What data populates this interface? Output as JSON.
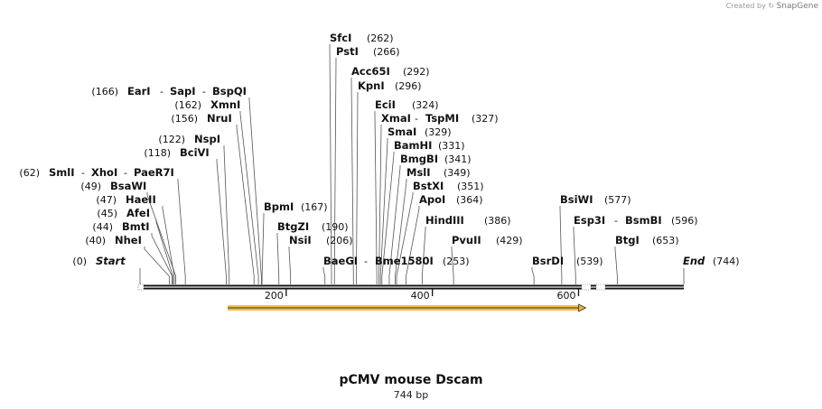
{
  "credit": {
    "prefix": "Created by",
    "brand": "SnapGene"
  },
  "plasmid": {
    "name": "pCMV mouse Dscam",
    "size_label": "744 bp",
    "length_bp": 744
  },
  "colors": {
    "feature": "#f0b030",
    "backbone": "#111111",
    "lines": "#555555"
  },
  "ticks": [
    200,
    400,
    600
  ],
  "feature": {
    "start_bp": 120,
    "end_bp": 610
  },
  "rows": [
    {
      "pos_bp": 262,
      "labels": [
        {
          "name": "SfcI",
          "pos": "(262)"
        }
      ]
    },
    {
      "pos_bp": 266,
      "labels": [
        {
          "name": "PstI",
          "pos": "(266)"
        }
      ]
    },
    {
      "pos_bp": 292,
      "labels": [
        {
          "name": "Acc65I",
          "pos": "(292)"
        }
      ]
    },
    {
      "pos_bp": 296,
      "labels": [
        {
          "name": "KpnI",
          "pos": "(296)"
        }
      ]
    },
    {
      "pos_bp": 166,
      "side": "left",
      "labels": [
        {
          "name": "EarI"
        },
        {
          "name": "SapI"
        },
        {
          "name": "BspQI"
        }
      ],
      "pos": "(166)"
    },
    {
      "pos_bp": 324,
      "labels": [
        {
          "name": "EciI",
          "pos": "(324)"
        }
      ]
    },
    {
      "pos_bp": 162,
      "side": "left",
      "labels": [
        {
          "name": "XmnI"
        }
      ],
      "pos": "(162)"
    },
    {
      "pos_bp": 327,
      "labels": [
        {
          "name": "XmaI"
        },
        {
          "name": "TspMI"
        }
      ],
      "pos": "(327)"
    },
    {
      "pos_bp": 156,
      "side": "left",
      "labels": [
        {
          "name": "NruI"
        }
      ],
      "pos": "(156)"
    },
    {
      "pos_bp": 329,
      "labels": [
        {
          "name": "SmaI",
          "pos": "(329)"
        }
      ]
    },
    {
      "pos_bp": 122,
      "side": "left",
      "labels": [
        {
          "name": "NspI"
        }
      ],
      "pos": "(122)"
    },
    {
      "pos_bp": 331,
      "labels": [
        {
          "name": "BamHI",
          "pos": "(331)"
        }
      ]
    },
    {
      "pos_bp": 118,
      "side": "left",
      "labels": [
        {
          "name": "BciVI"
        }
      ],
      "pos": "(118)"
    },
    {
      "pos_bp": 341,
      "labels": [
        {
          "name": "BmgBI",
          "pos": "(341)"
        }
      ]
    },
    {
      "pos_bp": 62,
      "side": "left",
      "labels": [
        {
          "name": "SmlI"
        },
        {
          "name": "XhoI"
        },
        {
          "name": "PaeR7I"
        }
      ],
      "pos": "(62)"
    },
    {
      "pos_bp": 349,
      "labels": [
        {
          "name": "MslI",
          "pos": "(349)"
        }
      ]
    },
    {
      "pos_bp": 49,
      "side": "left",
      "labels": [
        {
          "name": "BsaWI"
        }
      ],
      "pos": "(49)"
    },
    {
      "pos_bp": 351,
      "labels": [
        {
          "name": "BstXI",
          "pos": "(351)"
        }
      ]
    },
    {
      "pos_bp": 47,
      "side": "left",
      "labels": [
        {
          "name": "HaeII"
        }
      ],
      "pos": "(47)"
    },
    {
      "pos_bp": 364,
      "labels": [
        {
          "name": "ApoI",
          "pos": "(364)"
        }
      ]
    },
    {
      "pos_bp": 577,
      "labels": [
        {
          "name": "BsiWI",
          "pos": "(577)"
        }
      ]
    },
    {
      "pos_bp": 167,
      "labels": [
        {
          "name": "BpmI",
          "pos": "(167)"
        }
      ]
    },
    {
      "pos_bp": 45,
      "side": "left",
      "labels": [
        {
          "name": "AfeI"
        }
      ],
      "pos": "(45)"
    },
    {
      "pos_bp": 386,
      "labels": [
        {
          "name": "HindIII",
          "pos": "(386)"
        }
      ]
    },
    {
      "pos_bp": 596,
      "labels": [
        {
          "name": "Esp3I"
        },
        {
          "name": "BsmBI"
        }
      ],
      "pos": "(596)"
    },
    {
      "pos_bp": 44,
      "side": "left",
      "labels": [
        {
          "name": "BmtI"
        }
      ],
      "pos": "(44)"
    },
    {
      "pos_bp": 190,
      "labels": [
        {
          "name": "BtgZI",
          "pos": "(190)"
        }
      ]
    },
    {
      "pos_bp": 40,
      "side": "left",
      "labels": [
        {
          "name": "NheI"
        }
      ],
      "pos": "(40)"
    },
    {
      "pos_bp": 206,
      "labels": [
        {
          "name": "NsiI",
          "pos": "(206)"
        }
      ]
    },
    {
      "pos_bp": 429,
      "labels": [
        {
          "name": "PvuII",
          "pos": "(429)"
        }
      ]
    },
    {
      "pos_bp": 653,
      "labels": [
        {
          "name": "BtgI",
          "pos": "(653)"
        }
      ]
    },
    {
      "pos_bp": 0,
      "side": "left",
      "labels": [
        {
          "name": "Start",
          "italic": true
        }
      ],
      "pos": "(0)"
    },
    {
      "pos_bp": 253,
      "labels": [
        {
          "name": "BaeGI"
        },
        {
          "name": "Bme1580I"
        }
      ],
      "pos": "(253)"
    },
    {
      "pos_bp": 539,
      "labels": [
        {
          "name": "BsrDI",
          "pos": "(539)"
        }
      ]
    },
    {
      "pos_bp": 744,
      "labels": [
        {
          "name": "End",
          "italic": true,
          "pos": "(744)"
        }
      ]
    }
  ]
}
